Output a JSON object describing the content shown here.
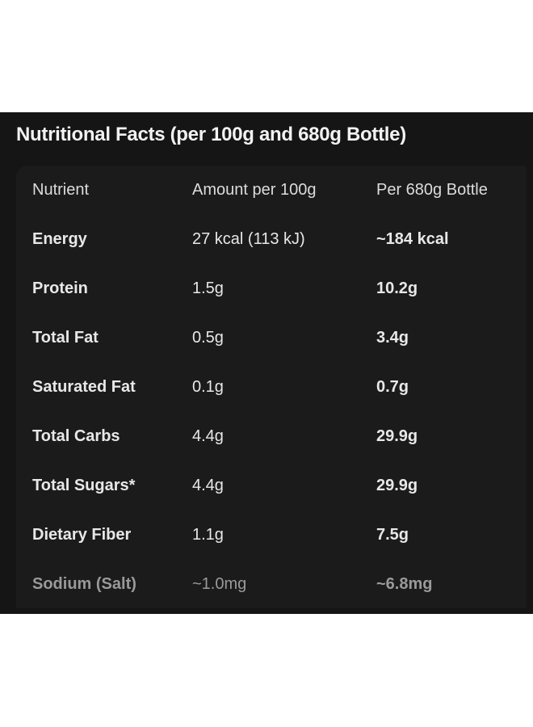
{
  "title": "Nutritional Facts (per 100g and 680g Bottle)",
  "headers": [
    "Nutrient",
    "Amount per 100g",
    "Per 680g Bottle"
  ],
  "rows": [
    [
      "Energy",
      "27 kcal (113 kJ)",
      "~184 kcal"
    ],
    [
      "Protein",
      "1.5g",
      "10.2g"
    ],
    [
      "Total Fat",
      "0.5g",
      "3.4g"
    ],
    [
      "Saturated Fat",
      "0.1g",
      "0.7g"
    ],
    [
      "Total Carbs",
      "4.4g",
      "29.9g"
    ],
    [
      "Total Sugars*",
      "4.4g",
      "29.9g"
    ],
    [
      "Dietary Fiber",
      "1.1g",
      "7.5g"
    ],
    [
      "Sodium (Salt)",
      "~1.0mg",
      "~6.8mg"
    ]
  ]
}
